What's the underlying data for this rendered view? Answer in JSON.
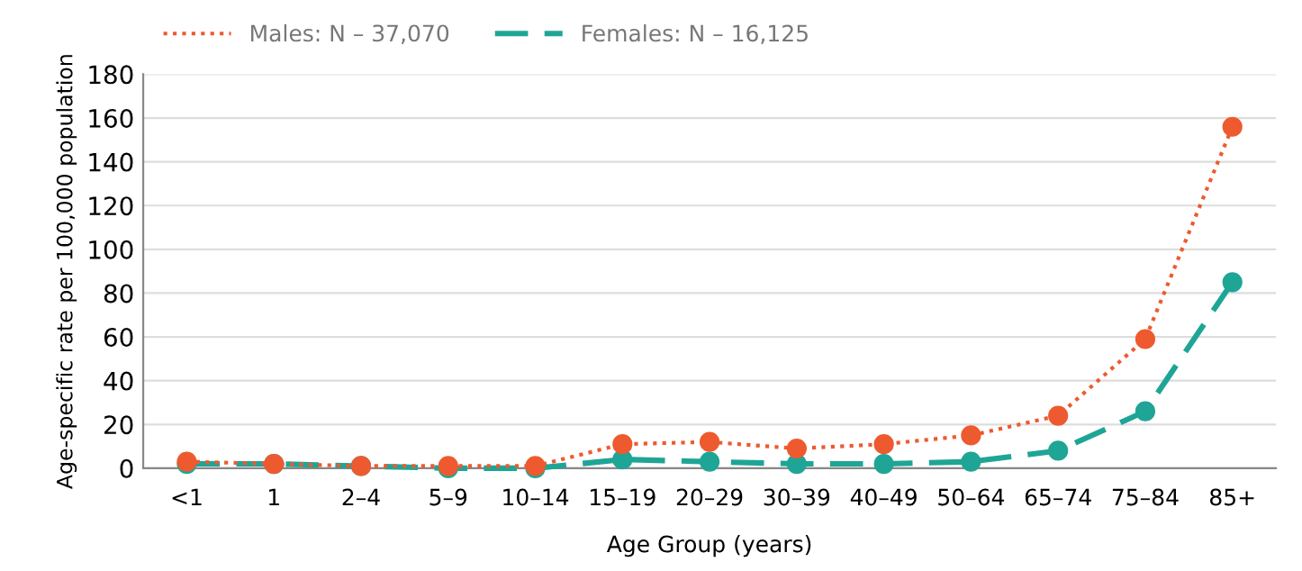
{
  "chart_data": {
    "type": "line",
    "xlabel": "Age Group (years)",
    "ylabel": "Age-specific rate per 100,000 population",
    "categories": [
      "<1",
      "1",
      "2–4",
      "5–9",
      "10–14",
      "15–19",
      "20–29",
      "30–39",
      "40–49",
      "50–64",
      "65–74",
      "75–84",
      "85+"
    ],
    "series": [
      {
        "name": "Males: N – 37,070",
        "color": "#ee5a2f",
        "line_style": "dotted",
        "values": [
          3,
          2,
          1,
          1,
          1,
          11,
          12,
          9,
          11,
          15,
          24,
          59,
          156
        ]
      },
      {
        "name": "Females: N – 16,125",
        "color": "#1fa596",
        "line_style": "dashed",
        "values": [
          2,
          2,
          1,
          0,
          0,
          4,
          3,
          2,
          2,
          3,
          8,
          26,
          85
        ]
      }
    ],
    "ylim": [
      0,
      180
    ],
    "yticks": [
      0,
      20,
      40,
      60,
      80,
      100,
      120,
      140,
      160,
      180
    ],
    "grid": "y",
    "legend": "top left",
    "marker": "circle"
  }
}
